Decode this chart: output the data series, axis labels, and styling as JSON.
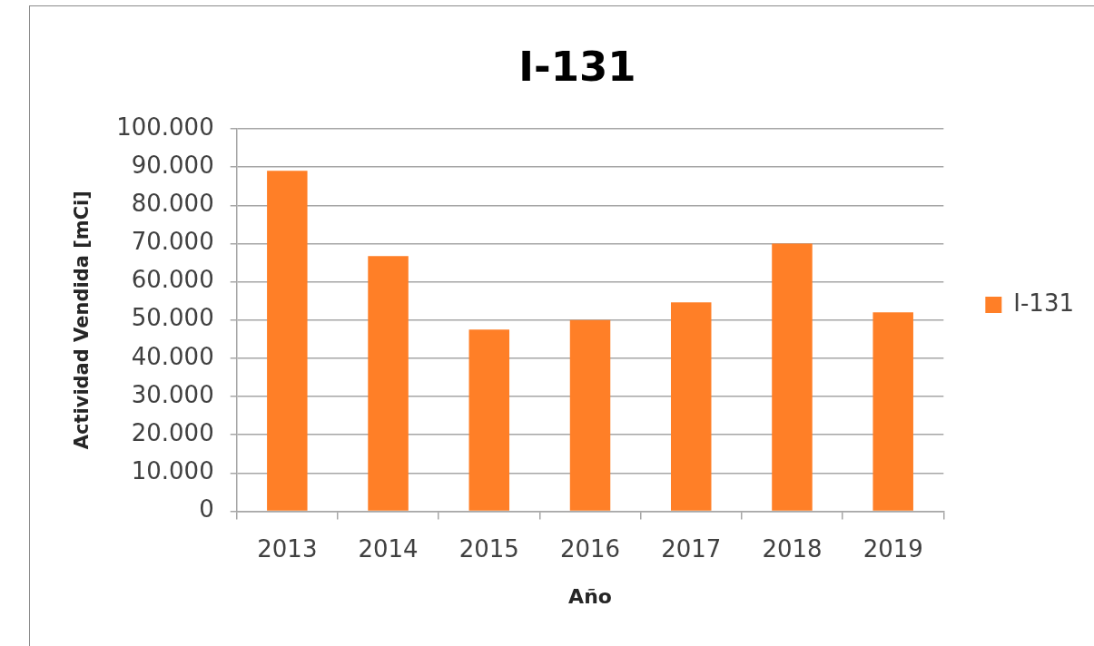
{
  "chart_data": {
    "type": "bar",
    "title": "I-131",
    "xlabel": "Año",
    "ylabel": "Actividad Vendida [mCi]",
    "categories": [
      "2013",
      "2014",
      "2015",
      "2016",
      "2017",
      "2018",
      "2019"
    ],
    "series": [
      {
        "name": "I-131",
        "color": "#ff7f27",
        "values": [
          89000,
          66700,
          47500,
          50000,
          54600,
          70000,
          52000
        ]
      }
    ],
    "ylim": [
      0,
      100000
    ],
    "yticks": [
      0,
      {
        "value": 10000,
        "label": "10.000"
      },
      {
        "value": 20000,
        "label": "20.000"
      },
      {
        "value": 30000,
        "label": "30.000"
      },
      {
        "value": 40000,
        "label": "40.000"
      },
      {
        "value": 50000,
        "label": "50.000"
      },
      {
        "value": 60000,
        "label": "60.000"
      },
      {
        "value": 70000,
        "label": "70.000"
      },
      {
        "value": 80000,
        "label": "80.000"
      },
      {
        "value": 90000,
        "label": "90.000"
      },
      {
        "value": 100000,
        "label": "100.000"
      }
    ],
    "grid": "y",
    "legend": "right"
  }
}
